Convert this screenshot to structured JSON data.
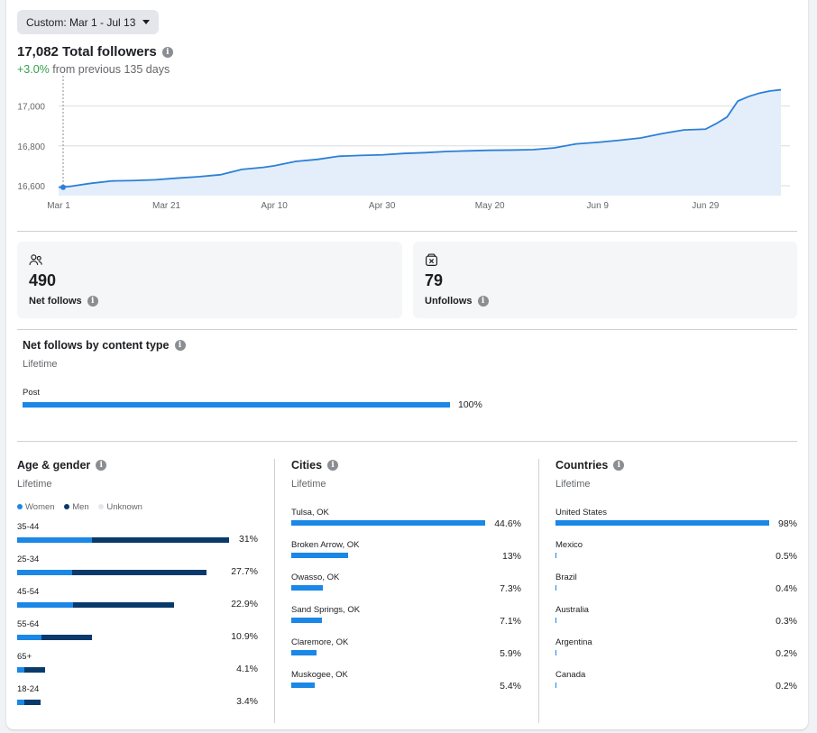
{
  "range_button": {
    "label": "Custom: Mar 1 - Jul 13"
  },
  "followers": {
    "total": "17,082 Total followers",
    "change": "+3.0%",
    "change_suffix": " from previous 135 days"
  },
  "chart_data": {
    "type": "area",
    "x_ticks": [
      "Mar 1",
      "Mar 21",
      "Apr 10",
      "Apr 30",
      "May 20",
      "Jun 9",
      "Jun 29"
    ],
    "y_ticks": [
      "17,000",
      "16,800",
      "16,600"
    ],
    "ylim": [
      16550,
      17080
    ],
    "series": [
      {
        "x": [
          "Mar 1",
          "Mar 3",
          "Mar 7",
          "Mar 11",
          "Mar 15",
          "Mar 19",
          "Mar 23",
          "Mar 27",
          "Mar 31",
          "Apr 4",
          "Apr 8",
          "Apr 10",
          "Apr 14",
          "Apr 18",
          "Apr 22",
          "Apr 26",
          "Apr 30",
          "May 4",
          "May 8",
          "May 12",
          "May 16",
          "May 20",
          "May 24",
          "May 28",
          "Jun 1",
          "Jun 5",
          "Jun 9",
          "Jun 13",
          "Jun 17",
          "Jun 21",
          "Jun 25",
          "Jun 29",
          "Jul 1",
          "Jul 3",
          "Jul 5",
          "Jul 7",
          "Jul 9",
          "Jul 11",
          "Jul 13"
        ],
        "values": [
          16592,
          16596,
          16612,
          16624,
          16626,
          16630,
          16638,
          16645,
          16655,
          16682,
          16692,
          16700,
          16722,
          16732,
          16748,
          16752,
          16755,
          16762,
          16766,
          16772,
          16775,
          16778,
          16779,
          16781,
          16790,
          16810,
          16818,
          16828,
          16840,
          16862,
          16880,
          16884,
          16912,
          16945,
          17025,
          17048,
          17065,
          17076,
          17082
        ]
      }
    ],
    "grid": true,
    "legend": "none"
  },
  "net_follows": {
    "value": "490",
    "label": "Net follows"
  },
  "unfollows": {
    "value": "79",
    "label": "Unfollows"
  },
  "content_type": {
    "title": "Net follows by content type",
    "period": "Lifetime",
    "items": [
      {
        "label": "Post",
        "pct": "100%",
        "value": 100
      }
    ]
  },
  "age_gender": {
    "title": "Age & gender",
    "period": "Lifetime",
    "legend": [
      "Women",
      "Men",
      "Unknown"
    ],
    "colors": {
      "women": "#1b87e6",
      "men": "#0a3a6b",
      "unknown": "#e4e6eb"
    },
    "rows": [
      {
        "label": "35-44",
        "pct": "31%",
        "total": 31,
        "women": 11
      },
      {
        "label": "25-34",
        "pct": "27.7%",
        "total": 27.7,
        "women": 8.1
      },
      {
        "label": "45-54",
        "pct": "22.9%",
        "total": 22.9,
        "women": 8.2
      },
      {
        "label": "55-64",
        "pct": "10.9%",
        "total": 10.9,
        "women": 3.5
      },
      {
        "label": "65+",
        "pct": "4.1%",
        "total": 4.1,
        "women": 1.1
      },
      {
        "label": "18-24",
        "pct": "3.4%",
        "total": 3.4,
        "women": 1.0
      }
    ]
  },
  "cities": {
    "title": "Cities",
    "period": "Lifetime",
    "rows": [
      {
        "label": "Tulsa, OK",
        "pct": "44.6%",
        "value": 44.6
      },
      {
        "label": "Broken Arrow, OK",
        "pct": "13%",
        "value": 13
      },
      {
        "label": "Owasso, OK",
        "pct": "7.3%",
        "value": 7.3
      },
      {
        "label": "Sand Springs, OK",
        "pct": "7.1%",
        "value": 7.1
      },
      {
        "label": "Claremore, OK",
        "pct": "5.9%",
        "value": 5.9
      },
      {
        "label": "Muskogee, OK",
        "pct": "5.4%",
        "value": 5.4
      }
    ]
  },
  "countries": {
    "title": "Countries",
    "period": "Lifetime",
    "rows": [
      {
        "label": "United States",
        "pct": "98%",
        "value": 98
      },
      {
        "label": "Mexico",
        "pct": "0.5%",
        "value": 0.5
      },
      {
        "label": "Brazil",
        "pct": "0.4%",
        "value": 0.4
      },
      {
        "label": "Australia",
        "pct": "0.3%",
        "value": 0.3
      },
      {
        "label": "Argentina",
        "pct": "0.2%",
        "value": 0.2
      },
      {
        "label": "Canada",
        "pct": "0.2%",
        "value": 0.2
      }
    ]
  }
}
